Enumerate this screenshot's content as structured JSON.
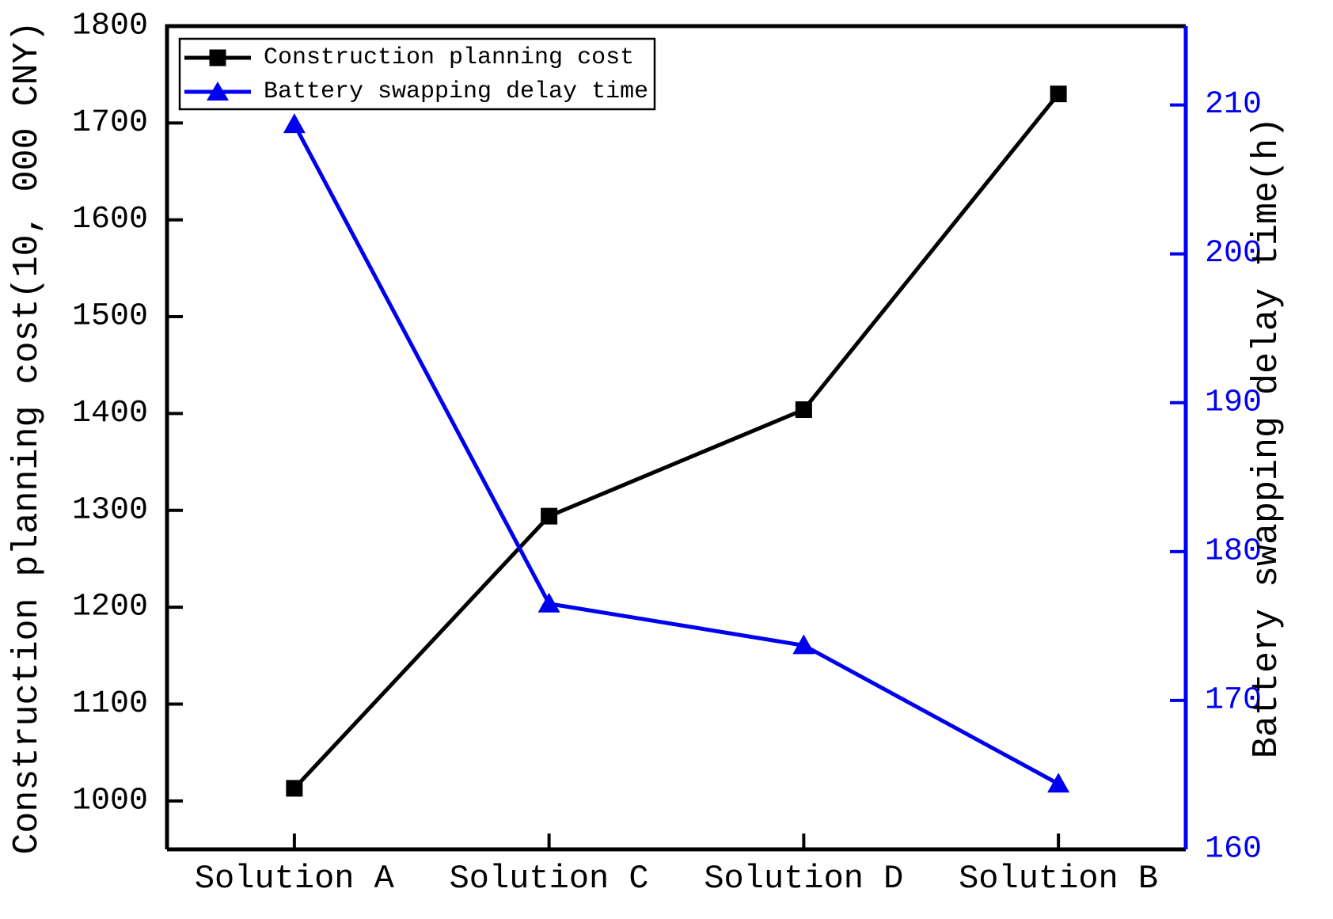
{
  "chart_data": {
    "type": "line",
    "title": "",
    "categories": [
      "Solution A",
      "Solution C",
      "Solution D",
      "Solution B"
    ],
    "series": [
      {
        "name": "Construction planning cost",
        "axis": "left",
        "color": "#000000",
        "marker": "square",
        "values": [
          1013,
          1294,
          1404,
          1730
        ]
      },
      {
        "name": "Battery swapping delay time",
        "axis": "right",
        "color": "#0000f0",
        "marker": "triangle-up",
        "values": [
          208.7,
          176.5,
          173.7,
          164.4
        ]
      }
    ],
    "left_axis": {
      "label": "Construction planning cost(10, 000 CNY)",
      "ticks": [
        1000,
        1100,
        1200,
        1300,
        1400,
        1500,
        1600,
        1700,
        1800
      ],
      "min": 950,
      "max": 1800,
      "color": "#000000"
    },
    "right_axis": {
      "label": "Battery swapping delay time(h)",
      "ticks": [
        160,
        170,
        180,
        190,
        200,
        210
      ],
      "min": 160,
      "max": 215.3,
      "color": "#0000f0"
    },
    "legend": {
      "position": "upper-left"
    },
    "grid": false,
    "background": "#ffffff"
  }
}
